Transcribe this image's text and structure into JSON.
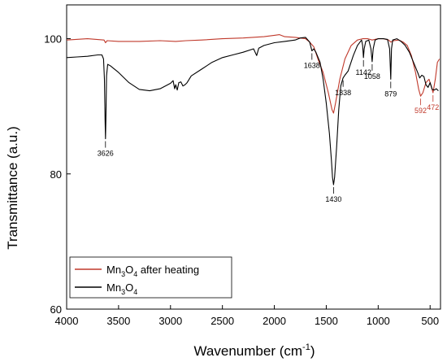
{
  "chart_data": {
    "type": "line",
    "xlabel": "Wavenumber (cm",
    "xlabel_sup": "-1",
    "xlabel_end": ")",
    "ylabel": "Transmittance (a.u.)",
    "xlim": [
      4000,
      400
    ],
    "xlim_reversed": true,
    "ylim": [
      60,
      105
    ],
    "x_ticks": [
      {
        "value": 4000,
        "label": "4000"
      },
      {
        "value": 3500,
        "label": "3500"
      },
      {
        "value": 3000,
        "label": "3000"
      },
      {
        "value": 2500,
        "label": "2500"
      },
      {
        "value": 2000,
        "label": "2000"
      },
      {
        "value": 1500,
        "label": "1500"
      },
      {
        "value": 1000,
        "label": "1000"
      },
      {
        "value": 500,
        "label": "500"
      }
    ],
    "y_ticks": [
      {
        "value": 60,
        "label": "60"
      },
      {
        "value": 80,
        "label": "80"
      },
      {
        "value": 100,
        "label": "100"
      }
    ],
    "grid": false,
    "legend_position": "bottom-left",
    "series": [
      {
        "name_parts": [
          "Mn",
          "3",
          "O",
          "4",
          " after heating"
        ],
        "color": "#c0392b",
        "points": [
          [
            4000,
            99.8
          ],
          [
            3800,
            100.0
          ],
          [
            3640,
            99.8
          ],
          [
            3626,
            99.4
          ],
          [
            3610,
            99.7
          ],
          [
            3500,
            99.6
          ],
          [
            3300,
            99.6
          ],
          [
            3100,
            99.7
          ],
          [
            2950,
            99.6
          ],
          [
            2850,
            99.7
          ],
          [
            2700,
            99.8
          ],
          [
            2500,
            100.0
          ],
          [
            2300,
            100.1
          ],
          [
            2100,
            100.3
          ],
          [
            2000,
            100.5
          ],
          [
            1950,
            100.6
          ],
          [
            1900,
            100.3
          ],
          [
            1800,
            100.2
          ],
          [
            1700,
            100.0
          ],
          [
            1660,
            99.5
          ],
          [
            1620,
            98.8
          ],
          [
            1580,
            97.0
          ],
          [
            1530,
            95.0
          ],
          [
            1480,
            92.0
          ],
          [
            1445,
            89.5
          ],
          [
            1430,
            89.0
          ],
          [
            1410,
            90.5
          ],
          [
            1370,
            94.0
          ],
          [
            1320,
            97.0
          ],
          [
            1260,
            99.0
          ],
          [
            1200,
            99.8
          ],
          [
            1150,
            100.0
          ],
          [
            1100,
            100.0
          ],
          [
            1058,
            99.8
          ],
          [
            1000,
            100.0
          ],
          [
            950,
            100.0
          ],
          [
            900,
            99.8
          ],
          [
            879,
            99.5
          ],
          [
            850,
            99.7
          ],
          [
            800,
            99.8
          ],
          [
            760,
            99.5
          ],
          [
            720,
            99.0
          ],
          [
            680,
            97.5
          ],
          [
            640,
            95.0
          ],
          [
            610,
            92.5
          ],
          [
            592,
            91.5
          ],
          [
            570,
            92.0
          ],
          [
            540,
            93.5
          ],
          [
            510,
            94.0
          ],
          [
            490,
            93.0
          ],
          [
            472,
            92.0
          ],
          [
            450,
            94.0
          ],
          [
            430,
            96.5
          ],
          [
            410,
            97.0
          ]
        ]
      },
      {
        "name_parts": [
          "Mn",
          "3",
          "O",
          "4",
          ""
        ],
        "color": "#000000",
        "points": [
          [
            4000,
            97.2
          ],
          [
            3900,
            97.3
          ],
          [
            3800,
            97.4
          ],
          [
            3700,
            97.6
          ],
          [
            3660,
            97.6
          ],
          [
            3645,
            97.0
          ],
          [
            3636,
            94.0
          ],
          [
            3630,
            88.0
          ],
          [
            3626,
            85.2
          ],
          [
            3622,
            88.0
          ],
          [
            3616,
            94.5
          ],
          [
            3605,
            96.2
          ],
          [
            3580,
            96.0
          ],
          [
            3500,
            95.0
          ],
          [
            3400,
            93.5
          ],
          [
            3300,
            92.5
          ],
          [
            3200,
            92.3
          ],
          [
            3100,
            92.6
          ],
          [
            3000,
            93.4
          ],
          [
            2975,
            93.8
          ],
          [
            2960,
            92.6
          ],
          [
            2950,
            93.2
          ],
          [
            2935,
            92.4
          ],
          [
            2920,
            93.5
          ],
          [
            2900,
            93.6
          ],
          [
            2880,
            93.0
          ],
          [
            2860,
            93.2
          ],
          [
            2840,
            93.5
          ],
          [
            2800,
            94.5
          ],
          [
            2700,
            95.5
          ],
          [
            2600,
            96.5
          ],
          [
            2500,
            97.2
          ],
          [
            2400,
            97.6
          ],
          [
            2300,
            98.0
          ],
          [
            2200,
            98.5
          ],
          [
            2170,
            97.5
          ],
          [
            2150,
            98.6
          ],
          [
            2100,
            99.0
          ],
          [
            2000,
            99.4
          ],
          [
            1900,
            99.6
          ],
          [
            1800,
            99.8
          ],
          [
            1750,
            100.1
          ],
          [
            1700,
            100.2
          ],
          [
            1660,
            99.5
          ],
          [
            1638,
            98.2
          ],
          [
            1620,
            98.5
          ],
          [
            1600,
            98.0
          ],
          [
            1560,
            96.5
          ],
          [
            1530,
            94.0
          ],
          [
            1500,
            90.5
          ],
          [
            1470,
            86.0
          ],
          [
            1450,
            82.0
          ],
          [
            1440,
            79.5
          ],
          [
            1430,
            78.4
          ],
          [
            1420,
            79.5
          ],
          [
            1400,
            84.0
          ],
          [
            1380,
            89.5
          ],
          [
            1360,
            93.0
          ],
          [
            1338,
            94.2
          ],
          [
            1320,
            94.6
          ],
          [
            1290,
            95.2
          ],
          [
            1240,
            97.5
          ],
          [
            1200,
            99.0
          ],
          [
            1160,
            99.8
          ],
          [
            1150,
            99.0
          ],
          [
            1142,
            97.2
          ],
          [
            1135,
            98.5
          ],
          [
            1120,
            99.6
          ],
          [
            1090,
            99.8
          ],
          [
            1070,
            98.5
          ],
          [
            1058,
            96.6
          ],
          [
            1048,
            98.5
          ],
          [
            1030,
            99.8
          ],
          [
            1000,
            100.0
          ],
          [
            950,
            100.0
          ],
          [
            910,
            99.9
          ],
          [
            890,
            98.5
          ],
          [
            879,
            94.0
          ],
          [
            872,
            98.5
          ],
          [
            860,
            99.8
          ],
          [
            820,
            100.0
          ],
          [
            780,
            99.6
          ],
          [
            740,
            99.0
          ],
          [
            700,
            98.0
          ],
          [
            660,
            96.5
          ],
          [
            620,
            95.0
          ],
          [
            600,
            94.2
          ],
          [
            580,
            94.6
          ],
          [
            560,
            94.4
          ],
          [
            540,
            93.2
          ],
          [
            520,
            92.8
          ],
          [
            500,
            93.5
          ],
          [
            480,
            92.5
          ],
          [
            460,
            92.4
          ],
          [
            440,
            92.6
          ],
          [
            420,
            92.3
          ]
        ]
      }
    ],
    "annotations": [
      {
        "x": 3626,
        "y": 85.2,
        "text": "3626",
        "color": "#000000",
        "side": "below"
      },
      {
        "x": 1638,
        "y": 98.2,
        "text": "1638",
        "color": "#000000",
        "side": "below"
      },
      {
        "x": 1430,
        "y": 78.4,
        "text": "1430",
        "color": "#000000",
        "side": "below"
      },
      {
        "x": 1338,
        "y": 94.2,
        "text": "1338",
        "color": "#000000",
        "side": "below"
      },
      {
        "x": 1142,
        "y": 97.2,
        "text": "1142",
        "color": "#000000",
        "side": "below"
      },
      {
        "x": 1058,
        "y": 96.6,
        "text": "1058",
        "color": "#000000",
        "side": "below"
      },
      {
        "x": 879,
        "y": 94.0,
        "text": "879",
        "color": "#000000",
        "side": "below"
      },
      {
        "x": 592,
        "y": 91.5,
        "text": "592",
        "color": "#c0392b",
        "side": "below"
      },
      {
        "x": 472,
        "y": 92.0,
        "text": "472",
        "color": "#c0392b",
        "side": "below"
      }
    ]
  }
}
